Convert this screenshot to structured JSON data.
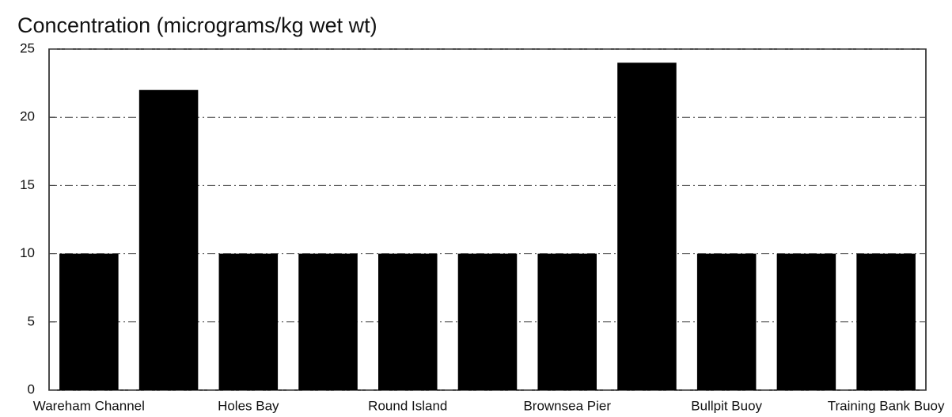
{
  "chart_data": {
    "type": "bar",
    "title": "Concentration (micrograms/kg wet wt)",
    "categories": [
      "Wareham Channel",
      null,
      "Holes Bay",
      null,
      "Round Island",
      null,
      "Brownsea Pier",
      null,
      "Bullpit Buoy",
      null,
      "Training Bank Buoy"
    ],
    "values": [
      10,
      22,
      10,
      10,
      10,
      10,
      10,
      24,
      10,
      10,
      10
    ],
    "color": "#000000",
    "ylim": [
      0,
      25
    ],
    "yticks": [
      0,
      5,
      10,
      15,
      20,
      25
    ],
    "grid": true
  }
}
